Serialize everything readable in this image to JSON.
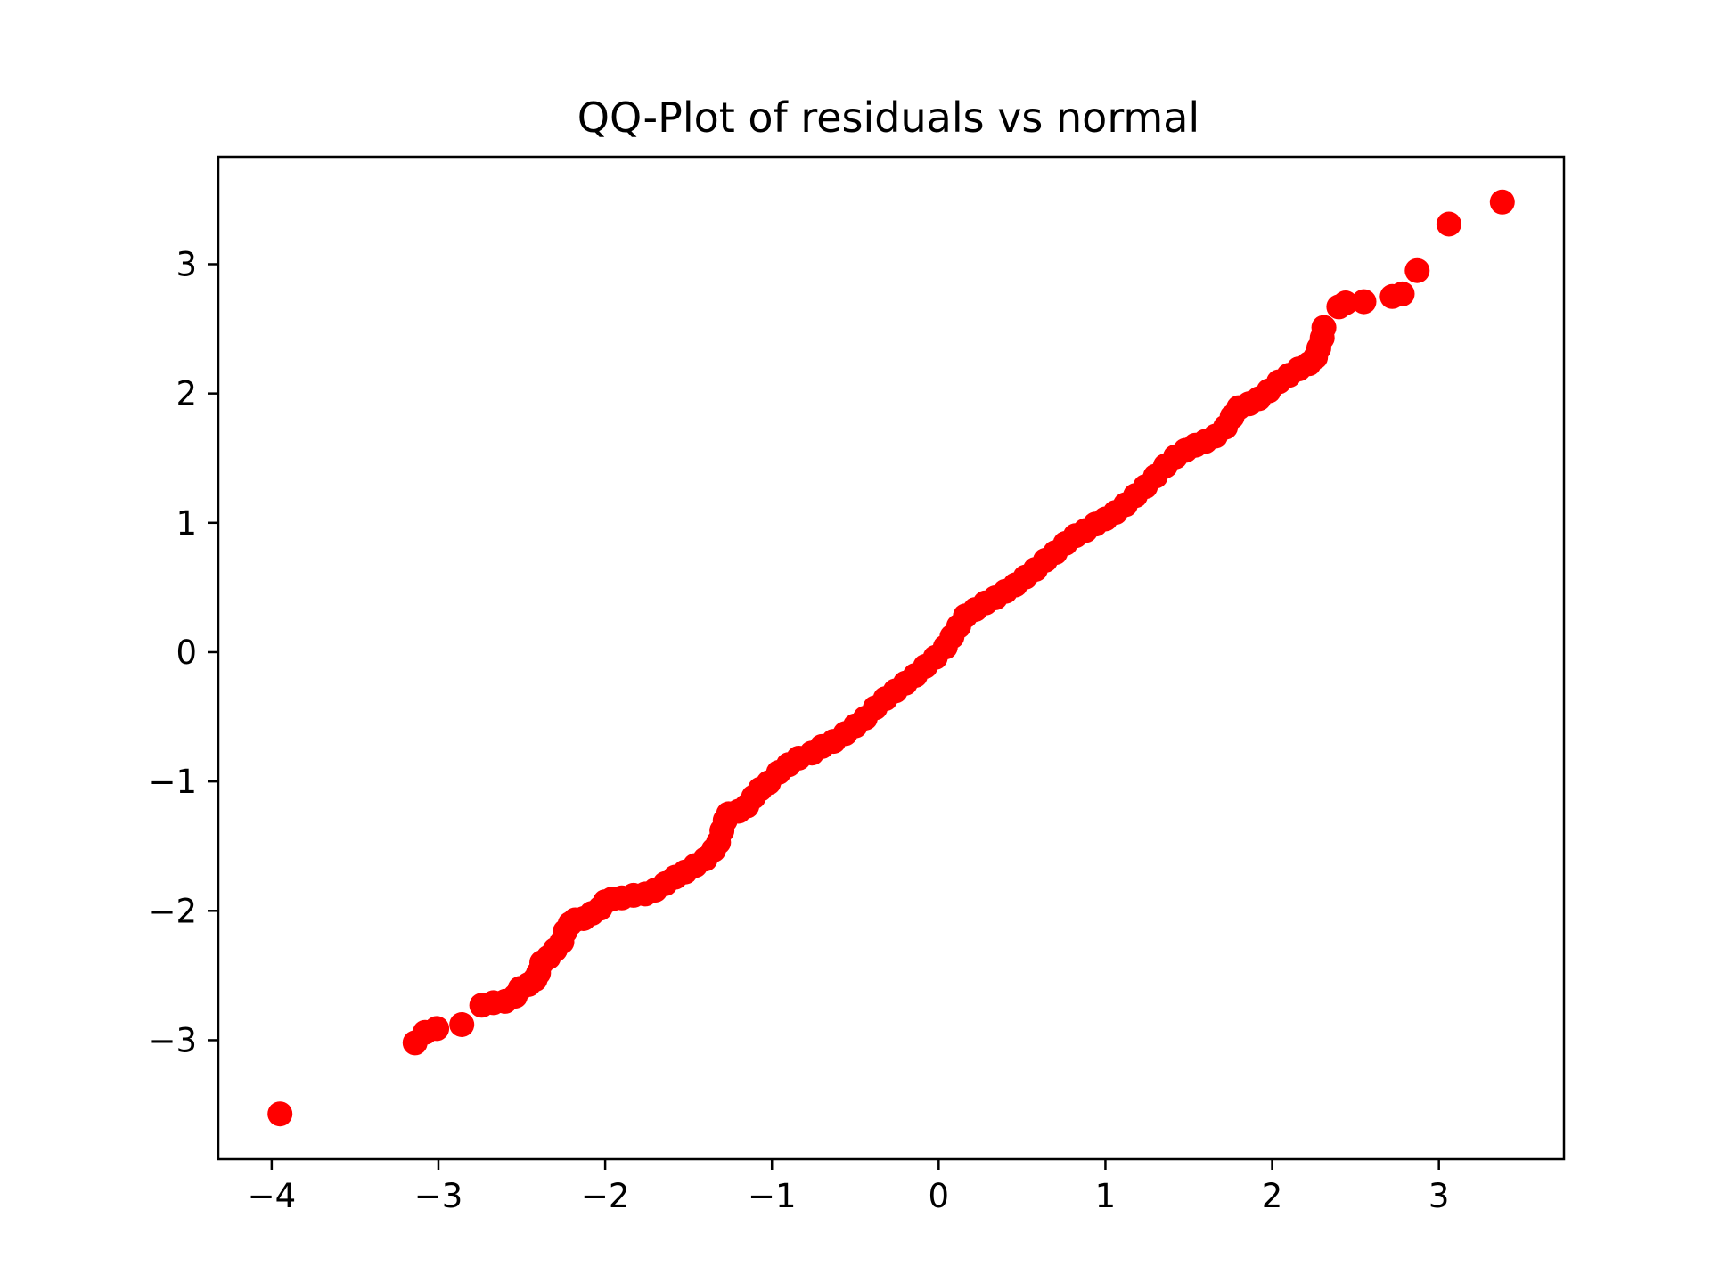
{
  "chart_data": {
    "type": "scatter",
    "title": "QQ-Plot of residuals vs normal",
    "xlabel": "",
    "ylabel": "",
    "xlim": [
      -4.32,
      3.75
    ],
    "ylim": [
      -3.92,
      3.83
    ],
    "x_ticks": [
      -4,
      -3,
      -2,
      -1,
      0,
      1,
      2,
      3
    ],
    "x_tick_labels": [
      "−4",
      "−3",
      "−2",
      "−1",
      "0",
      "1",
      "2",
      "3"
    ],
    "y_ticks": [
      -3,
      -2,
      -1,
      0,
      1,
      2,
      3
    ],
    "y_tick_labels": [
      "−3",
      "−2",
      "−1",
      "0",
      "1",
      "2",
      "3"
    ],
    "grid": false,
    "legend": "none",
    "marker_color": "#ff0000",
    "series": [
      {
        "points": [
          [
            -3.95,
            -3.57
          ],
          [
            -3.14,
            -3.02
          ],
          [
            -3.08,
            -2.94
          ],
          [
            -3.01,
            -2.91
          ],
          [
            -2.86,
            -2.88
          ],
          [
            -2.74,
            -2.73
          ],
          [
            -2.67,
            -2.71
          ],
          [
            -2.6,
            -2.7
          ],
          [
            -2.54,
            -2.66
          ],
          [
            -2.51,
            -2.6
          ],
          [
            -2.46,
            -2.57
          ],
          [
            -2.42,
            -2.53
          ],
          [
            -2.4,
            -2.48
          ],
          [
            -2.38,
            -2.4
          ],
          [
            -2.34,
            -2.36
          ],
          [
            -2.3,
            -2.3
          ],
          [
            -2.26,
            -2.24
          ],
          [
            -2.24,
            -2.16
          ],
          [
            -2.21,
            -2.1
          ],
          [
            -2.18,
            -2.07
          ],
          [
            -2.13,
            -2.06
          ],
          [
            -2.08,
            -2.02
          ],
          [
            -2.03,
            -1.98
          ],
          [
            -2.0,
            -1.93
          ],
          [
            -1.96,
            -1.91
          ],
          [
            -1.9,
            -1.9
          ],
          [
            -1.83,
            -1.88
          ],
          [
            -1.76,
            -1.87
          ],
          [
            -1.7,
            -1.84
          ],
          [
            -1.64,
            -1.79
          ],
          [
            -1.58,
            -1.74
          ],
          [
            -1.52,
            -1.7
          ],
          [
            -1.46,
            -1.65
          ],
          [
            -1.4,
            -1.6
          ],
          [
            -1.35,
            -1.53
          ],
          [
            -1.32,
            -1.47
          ],
          [
            -1.3,
            -1.38
          ],
          [
            -1.28,
            -1.3
          ],
          [
            -1.26,
            -1.25
          ],
          [
            -1.2,
            -1.23
          ],
          [
            -1.15,
            -1.19
          ],
          [
            -1.11,
            -1.12
          ],
          [
            -1.07,
            -1.06
          ],
          [
            -1.02,
            -1.01
          ],
          [
            -0.96,
            -0.93
          ],
          [
            -0.9,
            -0.87
          ],
          [
            -0.84,
            -0.82
          ],
          [
            -0.76,
            -0.78
          ],
          [
            -0.7,
            -0.73
          ],
          [
            -0.63,
            -0.69
          ],
          [
            -0.56,
            -0.63
          ],
          [
            -0.5,
            -0.57
          ],
          [
            -0.44,
            -0.51
          ],
          [
            -0.38,
            -0.43
          ],
          [
            -0.32,
            -0.36
          ],
          [
            -0.26,
            -0.3
          ],
          [
            -0.2,
            -0.24
          ],
          [
            -0.14,
            -0.18
          ],
          [
            -0.08,
            -0.11
          ],
          [
            -0.02,
            -0.04
          ],
          [
            0.04,
            0.04
          ],
          [
            0.08,
            0.12
          ],
          [
            0.12,
            0.2
          ],
          [
            0.16,
            0.28
          ],
          [
            0.22,
            0.33
          ],
          [
            0.28,
            0.38
          ],
          [
            0.34,
            0.42
          ],
          [
            0.4,
            0.47
          ],
          [
            0.46,
            0.52
          ],
          [
            0.52,
            0.58
          ],
          [
            0.58,
            0.64
          ],
          [
            0.64,
            0.71
          ],
          [
            0.7,
            0.77
          ],
          [
            0.76,
            0.84
          ],
          [
            0.82,
            0.9
          ],
          [
            0.88,
            0.94
          ],
          [
            0.94,
            0.99
          ],
          [
            1.0,
            1.03
          ],
          [
            1.06,
            1.08
          ],
          [
            1.12,
            1.14
          ],
          [
            1.18,
            1.21
          ],
          [
            1.24,
            1.28
          ],
          [
            1.3,
            1.36
          ],
          [
            1.36,
            1.44
          ],
          [
            1.42,
            1.51
          ],
          [
            1.48,
            1.56
          ],
          [
            1.54,
            1.6
          ],
          [
            1.6,
            1.63
          ],
          [
            1.66,
            1.67
          ],
          [
            1.72,
            1.74
          ],
          [
            1.76,
            1.82
          ],
          [
            1.8,
            1.89
          ],
          [
            1.86,
            1.92
          ],
          [
            1.92,
            1.96
          ],
          [
            1.98,
            2.02
          ],
          [
            2.04,
            2.09
          ],
          [
            2.1,
            2.14
          ],
          [
            2.16,
            2.19
          ],
          [
            2.22,
            2.23
          ],
          [
            2.26,
            2.28
          ],
          [
            2.28,
            2.35
          ],
          [
            2.3,
            2.43
          ],
          [
            2.31,
            2.51
          ],
          [
            2.4,
            2.67
          ],
          [
            2.44,
            2.7
          ],
          [
            2.55,
            2.71
          ],
          [
            2.72,
            2.75
          ],
          [
            2.78,
            2.77
          ],
          [
            2.87,
            2.95
          ],
          [
            3.06,
            3.31
          ],
          [
            3.38,
            3.48
          ]
        ]
      }
    ]
  }
}
